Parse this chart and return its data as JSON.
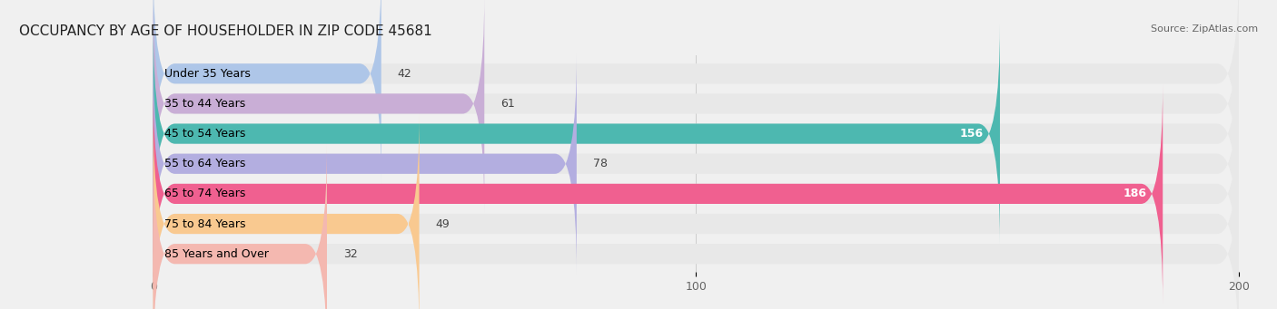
{
  "title": "OCCUPANCY BY AGE OF HOUSEHOLDER IN ZIP CODE 45681",
  "source": "Source: ZipAtlas.com",
  "categories": [
    "Under 35 Years",
    "35 to 44 Years",
    "45 to 54 Years",
    "55 to 64 Years",
    "65 to 74 Years",
    "75 to 84 Years",
    "85 Years and Over"
  ],
  "values": [
    42,
    61,
    156,
    78,
    186,
    49,
    32
  ],
  "bar_colors": [
    "#aec6e8",
    "#c9aed6",
    "#4db8b0",
    "#b3aee0",
    "#f06090",
    "#f9c990",
    "#f4b8b0"
  ],
  "xlim": [
    0,
    200
  ],
  "xticks": [
    0,
    100,
    200
  ],
  "background_color": "#f0f0f0",
  "bar_bg_color": "#e8e8e8",
  "title_fontsize": 11,
  "label_fontsize": 9,
  "value_fontsize": 9,
  "bar_height": 0.65
}
